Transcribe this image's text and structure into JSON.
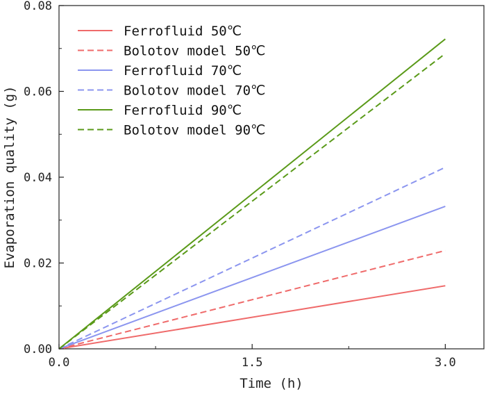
{
  "chart_data": {
    "type": "line",
    "title": "",
    "xlabel": "Time (h)",
    "ylabel": "Evaporation quality (g)",
    "xlim": [
      0,
      3.3
    ],
    "ylim": [
      0,
      0.08
    ],
    "xticks": [
      0.0,
      1.5,
      3.0
    ],
    "xtick_labels": [
      "0.0",
      "1.5",
      "3.0"
    ],
    "yticks": [
      0.0,
      0.02,
      0.04,
      0.06,
      0.08
    ],
    "ytick_labels": [
      "0.00",
      "0.02",
      "0.04",
      "0.06",
      "0.08"
    ],
    "grid": false,
    "legend_position": "top-left",
    "series": [
      {
        "name": "Ferrofluid 50℃",
        "color": "#ef6a6a",
        "dash": "solid",
        "x": [
          0,
          3.0
        ],
        "y": [
          0,
          0.0147
        ]
      },
      {
        "name": "Bolotov model 50℃",
        "color": "#ef6a6a",
        "dash": "dashed",
        "x": [
          0,
          3.0
        ],
        "y": [
          0,
          0.0229
        ]
      },
      {
        "name": "Ferrofluid 70℃",
        "color": "#8b95ef",
        "dash": "solid",
        "x": [
          0,
          3.0
        ],
        "y": [
          0,
          0.0332
        ]
      },
      {
        "name": "Bolotov model 70℃",
        "color": "#8b95ef",
        "dash": "dashed",
        "x": [
          0,
          3.0
        ],
        "y": [
          0,
          0.0423
        ]
      },
      {
        "name": "Ferrofluid 90℃",
        "color": "#5a9a19",
        "dash": "solid",
        "x": [
          0,
          3.0
        ],
        "y": [
          0,
          0.0722
        ]
      },
      {
        "name": "Bolotov model 90℃",
        "color": "#5a9a19",
        "dash": "dashed",
        "x": [
          0,
          3.0
        ],
        "y": [
          0,
          0.0688
        ]
      }
    ]
  }
}
